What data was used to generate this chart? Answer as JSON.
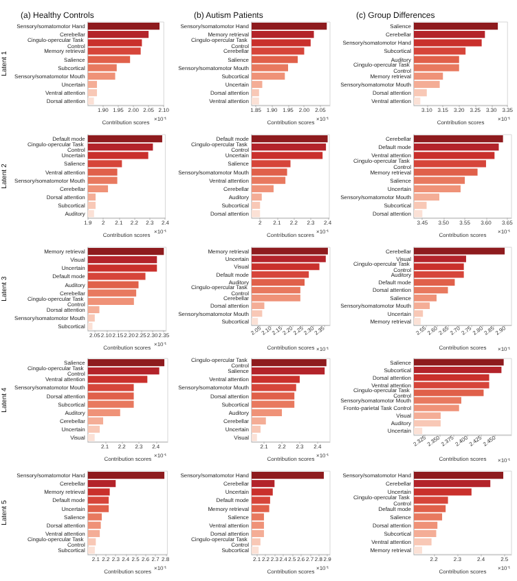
{
  "chart_data": [
    {
      "type": "bar",
      "orientation": "horizontal",
      "title": "(a) Healthy Controls",
      "ylabel": "Latent 1",
      "xlabel": "Contribution scores",
      "annotations": [
        "×10⁻¹"
      ],
      "categories": [
        "Sensory/somatomotor Hand",
        "Cerebellar",
        "Cingulo-opercular Task Control",
        "Memory retrieval",
        "Salience",
        "Subcortical",
        "Sensory/somatomotor Mouth",
        "Uncertain",
        "Ventral attention",
        "Dorsal attention"
      ],
      "values": [
        2.086,
        2.05,
        2.028,
        2.024,
        1.989,
        1.945,
        1.94,
        1.88,
        1.88,
        1.87
      ],
      "colors": [
        "#8e1b1e",
        "#b3232a",
        "#c9302c",
        "#d6453a",
        "#e0604a",
        "#e8795f",
        "#ef9278",
        "#f4ad96",
        "#f8c8b6",
        "#fbe1d6"
      ],
      "xlim": [
        1.85,
        2.1
      ],
      "xticks": [
        {
          "value": 1.9,
          "label": "1.90"
        },
        {
          "value": 1.95,
          "label": "1.95"
        },
        {
          "value": 2.0,
          "label": "2.00"
        },
        {
          "value": 2.05,
          "label": "2.05"
        },
        {
          "value": 2.1,
          "label": "2.10"
        }
      ]
    },
    {
      "type": "bar",
      "orientation": "horizontal",
      "title": "(b) Autism Patients",
      "xlabel": "Contribution scores",
      "annotations": [
        "×10⁻¹"
      ],
      "categories": [
        "Sensory/somatomotor Hand",
        "Memory retrieval",
        "Cingulo-opercular Task Control",
        "Cerebellar",
        "Salience",
        "Sensory/somatomotor Mouth",
        "Subcortical",
        "Uncertain",
        "Dorsal attention",
        "Ventral attention"
      ],
      "values": [
        2.07,
        2.03,
        2.02,
        2.0,
        1.98,
        1.95,
        1.94,
        1.87,
        1.86,
        1.86
      ],
      "colors": [
        "#8e1b1e",
        "#b3232a",
        "#c9302c",
        "#d6453a",
        "#e0604a",
        "#e8795f",
        "#ef9278",
        "#f4ad96",
        "#f8c8b6",
        "#fbe1d6"
      ],
      "xlim": [
        1.837,
        2.08
      ],
      "xticks": [
        {
          "value": 1.85,
          "label": "1.85"
        },
        {
          "value": 1.9,
          "label": "1.90"
        },
        {
          "value": 1.95,
          "label": "1.95"
        },
        {
          "value": 2.0,
          "label": "2.00"
        },
        {
          "value": 2.05,
          "label": "2.05"
        }
      ]
    },
    {
      "type": "bar",
      "orientation": "horizontal",
      "title": "(c) Group Differences",
      "xlabel": "Contribution scores",
      "annotations": [
        "×10⁻¹"
      ],
      "categories": [
        "Salience",
        "Cerebellar",
        "Sensory/somatomotor Hand",
        "Subcortical",
        "Auditory",
        "Cingulo-opercular Task Control",
        "Memory retrieval",
        "Sensory/somatomotor Mouth",
        "Dorsal attention",
        "Ventral attention"
      ],
      "values": [
        3.32,
        3.28,
        3.27,
        3.22,
        3.2,
        3.2,
        3.15,
        3.14,
        3.1,
        3.08
      ],
      "colors": [
        "#8e1b1e",
        "#b3232a",
        "#c9302c",
        "#d6453a",
        "#e0604a",
        "#e8795f",
        "#ef9278",
        "#f4ad96",
        "#f8c8b6",
        "#fbe1d6"
      ],
      "xlim": [
        3.06,
        3.35
      ],
      "xticks": [
        {
          "value": 3.1,
          "label": "3.10"
        },
        {
          "value": 3.15,
          "label": "3.15"
        },
        {
          "value": 3.2,
          "label": "3.20"
        },
        {
          "value": 3.25,
          "label": "3.25"
        },
        {
          "value": 3.3,
          "label": "3.30"
        },
        {
          "value": 3.35,
          "label": "3.35"
        }
      ]
    },
    {
      "type": "bar",
      "orientation": "horizontal",
      "ylabel": "Latent 2",
      "xlabel": "Contribution scores",
      "annotations": [
        "×10⁻¹"
      ],
      "categories": [
        "Default mode",
        "Cingulo-opercular Task Control",
        "Uncertain",
        "Salience",
        "Ventral attention",
        "Sensory/somatomotor Mouth",
        "Cerebellar",
        "Dorsal attention",
        "Subcortical",
        "Auditory"
      ],
      "values": [
        2.38,
        2.32,
        2.29,
        2.12,
        2.09,
        2.09,
        2.03,
        1.95,
        1.95,
        1.94
      ],
      "colors": [
        "#8e1b1e",
        "#b3232a",
        "#c9302c",
        "#d6453a",
        "#e0604a",
        "#e8795f",
        "#ef9278",
        "#f4ad96",
        "#f8c8b6",
        "#fbe1d6"
      ],
      "xlim": [
        1.9,
        2.4
      ],
      "xticks": [
        1.9,
        2.0,
        2.1,
        2.2,
        2.3,
        2.4
      ]
    },
    {
      "type": "bar",
      "orientation": "horizontal",
      "xlabel": "Contribution scores",
      "annotations": [
        "×10⁻¹"
      ],
      "categories": [
        "Default mode",
        "Cingulo-opercular Task Control",
        "Uncertain",
        "Salience",
        "Sensory/somatomotor Mouth",
        "Ventral attention",
        "Cerebellar",
        "Auditory",
        "Subcortical",
        "Dorsal attention"
      ],
      "values": [
        2.4,
        2.39,
        2.37,
        2.18,
        2.16,
        2.15,
        2.08,
        2.01,
        2.0,
        2.0
      ],
      "colors": [
        "#8e1b1e",
        "#b3232a",
        "#c9302c",
        "#d6453a",
        "#e0604a",
        "#e8795f",
        "#ef9278",
        "#f4ad96",
        "#f8c8b6",
        "#fbe1d6"
      ],
      "xlim": [
        1.95,
        2.41
      ],
      "xticks": [
        2.0,
        2.1,
        2.2,
        2.3,
        2.4
      ]
    },
    {
      "type": "bar",
      "orientation": "horizontal",
      "xlabel": "Contribution scores",
      "annotations": [
        "×10⁻¹"
      ],
      "categories": [
        "Cerebellar",
        "Default mode",
        "Ventral attention",
        "Cingulo-opercular Task Control",
        "Memory retrieval",
        "Salience",
        "Uncertain",
        "Sensory/somatomotor Mouth",
        "Subcortical",
        "Dorsal attention"
      ],
      "values": [
        3.64,
        3.63,
        3.62,
        3.6,
        3.58,
        3.55,
        3.54,
        3.49,
        3.46,
        3.45
      ],
      "colors": [
        "#8e1b1e",
        "#b3232a",
        "#c9302c",
        "#d6453a",
        "#e0604a",
        "#e8795f",
        "#ef9278",
        "#f4ad96",
        "#f8c8b6",
        "#fbe1d6"
      ],
      "xlim": [
        3.43,
        3.66
      ],
      "xticks": [
        {
          "value": 3.45,
          "label": "3.45"
        },
        {
          "value": 3.5,
          "label": "3.50"
        },
        {
          "value": 3.55,
          "label": "3.55"
        },
        {
          "value": 3.6,
          "label": "3.60"
        },
        {
          "value": 3.65,
          "label": "3.65"
        }
      ]
    },
    {
      "type": "bar",
      "orientation": "horizontal",
      "ylabel": "Latent 3",
      "xlabel": "Contribution scores",
      "annotations": [
        "×10⁻¹"
      ],
      "categories": [
        "Memory retrieval",
        "Visual",
        "Uncertain",
        "Default mode",
        "Auditory",
        "Cerebellar",
        "Cingulo-opercular Task Control",
        "Dorsal attention",
        "Sensory/somatomotor Mouth",
        "Subcortical"
      ],
      "values": [
        2.35,
        2.32,
        2.32,
        2.27,
        2.24,
        2.23,
        2.22,
        2.07,
        2.05,
        2.04
      ],
      "colors": [
        "#8e1b1e",
        "#b3232a",
        "#c9302c",
        "#d6453a",
        "#e0604a",
        "#e8795f",
        "#ef9278",
        "#f4ad96",
        "#f8c8b6",
        "#fbe1d6"
      ],
      "xlim": [
        2.02,
        2.36
      ],
      "xticks": [
        {
          "value": 2.05,
          "label": "2.05"
        },
        {
          "value": 2.1,
          "label": "2.10"
        },
        {
          "value": 2.15,
          "label": "2.15"
        },
        {
          "value": 2.2,
          "label": "2.20"
        },
        {
          "value": 2.25,
          "label": "2.25"
        },
        {
          "value": 2.3,
          "label": "2.30"
        },
        {
          "value": 2.35,
          "label": "2.35"
        }
      ]
    },
    {
      "type": "bar",
      "orientation": "horizontal",
      "xlabel": "Contribution scores",
      "annotations": [
        "×10⁻¹"
      ],
      "categories": [
        "Memory retrieval",
        "Uncertain",
        "Visual",
        "Default mode",
        "Auditory",
        "Cingulo-opercular Task Control",
        "Cerebellar",
        "Dorsal attention",
        "Sensory/somatomotor Mouth",
        "Subcortical"
      ],
      "values": [
        2.37,
        2.36,
        2.33,
        2.28,
        2.26,
        2.24,
        2.24,
        2.07,
        2.06,
        2.04
      ],
      "colors": [
        "#8e1b1e",
        "#b3232a",
        "#c9302c",
        "#d6453a",
        "#e0604a",
        "#e8795f",
        "#ef9278",
        "#f4ad96",
        "#f8c8b6",
        "#fbe1d6"
      ],
      "xlim": [
        2.01,
        2.38
      ],
      "xticks": [
        {
          "value": 2.05,
          "label": "2.05"
        },
        {
          "value": 2.1,
          "label": "2.10"
        },
        {
          "value": 2.15,
          "label": "2.15"
        },
        {
          "value": 2.2,
          "label": "2.20"
        },
        {
          "value": 2.25,
          "label": "2.25"
        },
        {
          "value": 2.3,
          "label": "2.30"
        },
        {
          "value": 2.35,
          "label": "2.35"
        }
      ]
    },
    {
      "type": "bar",
      "orientation": "horizontal",
      "xlabel": "Contribution scores",
      "annotations": [
        "×10⁻¹"
      ],
      "categories": [
        "Cerebellar",
        "Visual",
        "Cingulo-opercular Task Control",
        "Auditory",
        "Default mode",
        "Dorsal attention",
        "Salience",
        "Sensory/somatomotor Mouth",
        "Uncertain",
        "Memory retrieval"
      ],
      "values": [
        2.9,
        2.73,
        2.72,
        2.72,
        2.68,
        2.65,
        2.6,
        2.57,
        2.54,
        2.53
      ],
      "colors": [
        "#8e1b1e",
        "#b3232a",
        "#c9302c",
        "#d6453a",
        "#e0604a",
        "#e8795f",
        "#ef9278",
        "#f4ad96",
        "#f8c8b6",
        "#fbe1d6"
      ],
      "xlim": [
        2.5,
        2.93
      ],
      "xticks": [
        {
          "value": 2.55,
          "label": "2.55"
        },
        {
          "value": 2.6,
          "label": "2.60"
        },
        {
          "value": 2.65,
          "label": "2.65"
        },
        {
          "value": 2.7,
          "label": "2.70"
        },
        {
          "value": 2.75,
          "label": "2.75"
        },
        {
          "value": 2.8,
          "label": "2.80"
        },
        {
          "value": 2.85,
          "label": "2.85"
        },
        {
          "value": 2.9,
          "label": "2.90"
        }
      ]
    },
    {
      "type": "bar",
      "orientation": "horizontal",
      "ylabel": "Latent 4",
      "xlabel": "Contribution scores",
      "annotations": [
        "×10⁻¹"
      ],
      "categories": [
        "Salience",
        "Cingulo-opercular Task Control",
        "Ventral attention",
        "Sensory/somatomotor Mouth",
        "Dorsal attention",
        "Subcortical",
        "Auditory",
        "Cerebellar",
        "Uncertain",
        "Visual"
      ],
      "values": [
        2.45,
        2.42,
        2.35,
        2.27,
        2.27,
        2.27,
        2.19,
        2.09,
        2.07,
        2.04
      ],
      "colors": [
        "#8e1b1e",
        "#b3232a",
        "#c9302c",
        "#d6453a",
        "#e0604a",
        "#e8795f",
        "#ef9278",
        "#f4ad96",
        "#f8c8b6",
        "#fbe1d6"
      ],
      "xlim": [
        2.0,
        2.47
      ],
      "xticks": [
        2.1,
        2.2,
        2.3,
        2.4
      ]
    },
    {
      "type": "bar",
      "orientation": "horizontal",
      "xlabel": "Contribution scores",
      "annotations": [
        "×10⁻¹"
      ],
      "categories": [
        "Cingulo-opercular Task Control",
        "Salience",
        "Ventral attention",
        "Sensory/somatomotor Mouth",
        "Dorsal attention",
        "Subcortical",
        "Auditory",
        "Cerebellar",
        "Uncertain",
        "Visual"
      ],
      "values": [
        2.45,
        2.44,
        2.3,
        2.28,
        2.27,
        2.27,
        2.2,
        2.11,
        2.08,
        2.06
      ],
      "colors": [
        "#8e1b1e",
        "#b3232a",
        "#c9302c",
        "#d6453a",
        "#e0604a",
        "#e8795f",
        "#ef9278",
        "#f4ad96",
        "#f8c8b6",
        "#fbe1d6"
      ],
      "xlim": [
        2.03,
        2.47
      ],
      "xticks": [
        2.1,
        2.2,
        2.3,
        2.4
      ]
    },
    {
      "type": "bar",
      "orientation": "horizontal",
      "xlabel": "Contribution scores",
      "annotations": [
        "×10⁻¹"
      ],
      "categories": [
        "Salience",
        "Subcortical",
        "Dorsal attention",
        "Ventral attention",
        "Cingulo-opercular Task Control",
        "Sensory/somatomotor Mouth",
        "Fronto-parietal Task Control",
        "Visual",
        "Auditory",
        "Uncertain"
      ],
      "values": [
        2.466,
        2.462,
        2.44,
        2.44,
        2.43,
        2.39,
        2.386,
        2.353,
        2.353,
        2.32
      ],
      "colors": [
        "#8e1b1e",
        "#b3232a",
        "#c9302c",
        "#d6453a",
        "#e0604a",
        "#e8795f",
        "#ef9278",
        "#f4ad96",
        "#f8c8b6",
        "#fbe1d6"
      ],
      "xlim": [
        2.305,
        2.48
      ],
      "xticks": [
        {
          "value": 2.325,
          "label": "2.325"
        },
        {
          "value": 2.35,
          "label": "2.350"
        },
        {
          "value": 2.375,
          "label": "2.375"
        },
        {
          "value": 2.4,
          "label": "2.400"
        },
        {
          "value": 2.425,
          "label": "2.425"
        },
        {
          "value": 2.45,
          "label": "2.450"
        }
      ]
    },
    {
      "type": "bar",
      "orientation": "horizontal",
      "ylabel": "Latent 5",
      "xlabel": "Contribution scores",
      "annotations": [
        "×10⁻¹"
      ],
      "categories": [
        "Sensory/somatomotor Hand",
        "Cerebellar",
        "Memory retrieval",
        "Default mode",
        "Uncertain",
        "Salience",
        "Dorsal attention",
        "Ventral attention",
        "Cingulo-opercular Task Control",
        "Subcortical"
      ],
      "values": [
        2.79,
        2.3,
        2.24,
        2.23,
        2.23,
        2.16,
        2.15,
        2.14,
        2.1,
        2.09
      ],
      "colors": [
        "#8e1b1e",
        "#b3232a",
        "#c9302c",
        "#d6453a",
        "#e0604a",
        "#e8795f",
        "#ef9278",
        "#f4ad96",
        "#f8c8b6",
        "#fbe1d6"
      ],
      "xlim": [
        2.02,
        2.82
      ],
      "xticks": [
        2.1,
        2.2,
        2.3,
        2.4,
        2.5,
        2.6,
        2.7,
        2.8
      ]
    },
    {
      "type": "bar",
      "orientation": "horizontal",
      "xlabel": "Contribution scores",
      "annotations": [
        "×10⁻¹"
      ],
      "categories": [
        "Sensory/somatomotor Hand",
        "Cerebellar",
        "Uncertain",
        "Default mode",
        "Memory retrieval",
        "Salience",
        "Ventral attention",
        "Dorsal attention",
        "Cingulo-opercular Task Control",
        "Subcortical"
      ],
      "values": [
        2.86,
        2.3,
        2.28,
        2.25,
        2.24,
        2.18,
        2.18,
        2.18,
        2.14,
        2.12
      ],
      "colors": [
        "#8e1b1e",
        "#b3232a",
        "#c9302c",
        "#d6453a",
        "#e0604a",
        "#e8795f",
        "#ef9278",
        "#f4ad96",
        "#f8c8b6",
        "#fbe1d6"
      ],
      "xlim": [
        2.04,
        2.93
      ],
      "xticks": [
        2.1,
        2.2,
        2.3,
        2.4,
        2.5,
        2.6,
        2.7,
        2.8,
        2.9
      ]
    },
    {
      "type": "bar",
      "orientation": "horizontal",
      "xlabel": "Contribution scores",
      "annotations": [
        "×10⁻¹"
      ],
      "categories": [
        "Sensory/somatomotor Hand",
        "Cerebellar",
        "Uncertain",
        "Cingulo-opercular Task Control",
        "Default mode",
        "Salience",
        "Dorsal attention",
        "Subcortical",
        "Ventral attention",
        "Memory retrieval"
      ],
      "values": [
        2.495,
        2.44,
        2.36,
        2.26,
        2.25,
        2.235,
        2.215,
        2.21,
        2.19,
        2.15
      ],
      "colors": [
        "#8e1b1e",
        "#b3232a",
        "#c9302c",
        "#d6453a",
        "#e0604a",
        "#e8795f",
        "#ef9278",
        "#f4ad96",
        "#f8c8b6",
        "#fbe1d6"
      ],
      "xlim": [
        2.115,
        2.53
      ],
      "xticks": [
        2.2,
        2.3,
        2.4,
        2.5
      ]
    }
  ]
}
